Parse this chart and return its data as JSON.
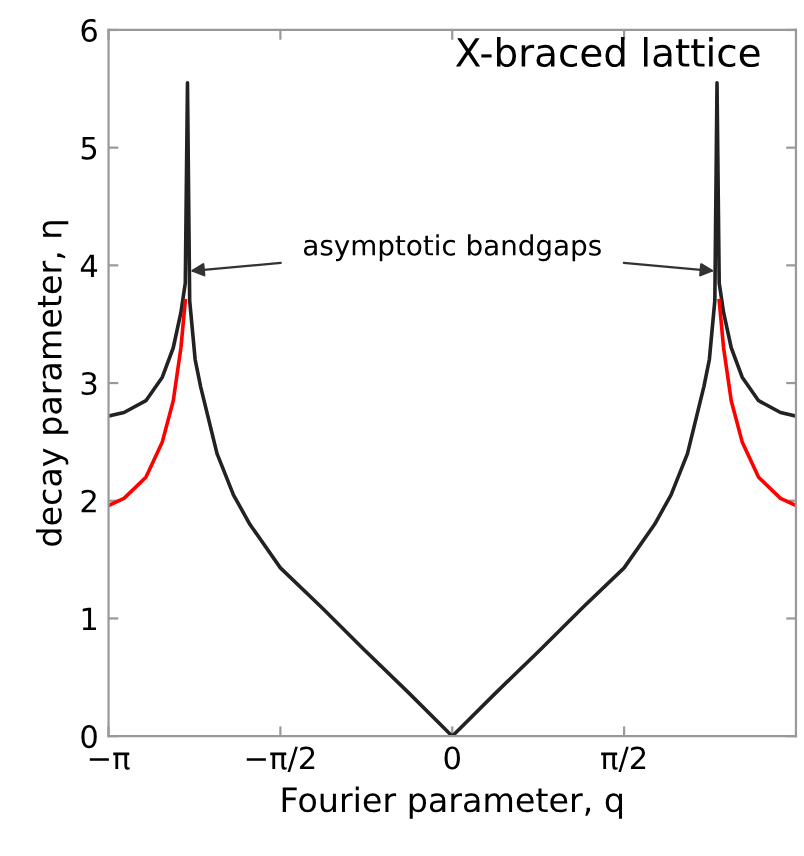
{
  "chart_data": {
    "type": "line",
    "title": "X-braced lattice",
    "xlabel": "Fourier parameter, q",
    "ylabel": "decay parameter, η",
    "annotations": [
      {
        "text": "asymptotic bandgaps",
        "x": -2.42,
        "y": 3.95
      }
    ],
    "x": [
      -3.14159,
      -3.0,
      -2.8,
      -2.65,
      -2.55,
      -2.48,
      -2.44,
      -2.42,
      -2.4,
      -2.35,
      -2.3,
      -2.15,
      -2.0,
      -1.85,
      -1.571,
      -1.2,
      -0.8,
      -0.4,
      0,
      0.4,
      0.8,
      1.2,
      1.571,
      1.85,
      2.0,
      2.15,
      2.3,
      2.35,
      2.4,
      2.42,
      2.44,
      2.48,
      2.55,
      2.65,
      2.8,
      3.0,
      3.14159
    ],
    "series": [
      {
        "color": "#222222",
        "values": [
          2.72,
          2.75,
          2.85,
          3.05,
          3.3,
          3.6,
          3.85,
          5.55,
          3.7,
          3.2,
          2.97,
          2.4,
          2.05,
          1.8,
          1.43,
          1.1,
          0.73,
          0.37,
          0,
          0.37,
          0.73,
          1.1,
          1.43,
          1.8,
          2.05,
          2.4,
          2.97,
          3.2,
          3.7,
          5.55,
          3.85,
          3.6,
          3.3,
          3.05,
          2.85,
          2.75,
          2.72
        ]
      },
      {
        "color": "#ff0000",
        "values": [
          1.96,
          2.02,
          2.2,
          2.5,
          2.85,
          3.3,
          3.7,
          null,
          null,
          null,
          null,
          null,
          null,
          null,
          null,
          null,
          null,
          null,
          null,
          null,
          null,
          null,
          null,
          null,
          null,
          null,
          null,
          null,
          null,
          null,
          3.7,
          3.3,
          2.85,
          2.5,
          2.2,
          2.02,
          1.96
        ]
      }
    ],
    "xlim": [
      -3.14159,
      3.14159
    ],
    "ylim": [
      0,
      6
    ],
    "xticks": [
      {
        "value": -3.14159,
        "label": "−π"
      },
      {
        "value": -1.5708,
        "label": "−π/2"
      },
      0,
      {
        "value": 1.5708,
        "label": "π/2"
      }
    ],
    "yticks": [
      0,
      1,
      2,
      3,
      4,
      5,
      6
    ],
    "grid": false,
    "marker": "none",
    "line_style": "solid"
  }
}
